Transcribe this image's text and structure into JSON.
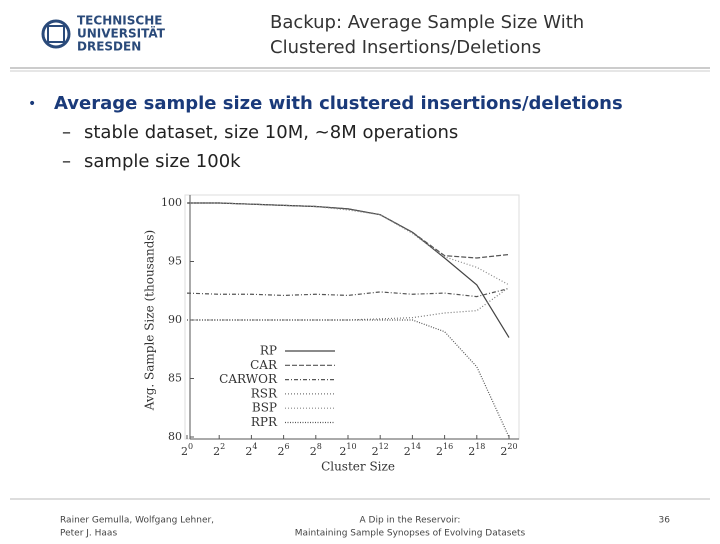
{
  "header": {
    "logo": [
      "TECHNISCHE",
      "UNIVERSITÄT",
      "DRESDEN"
    ],
    "title": [
      "Backup: Average Sample Size With",
      "Clustered Insertions/Deletions"
    ]
  },
  "bullets": {
    "main": "Average sample size with clustered insertions/deletions",
    "sub": [
      "stable dataset, size 10M, ~8M operations",
      "sample size 100k"
    ]
  },
  "chart_data": {
    "type": "line",
    "xlabel": "Cluster Size",
    "ylabel": "Avg. Sample Size (thousands)",
    "x": [
      1,
      4,
      16,
      64,
      256,
      1024,
      4096,
      16384,
      65536,
      262144,
      1048576
    ],
    "xscale": "log",
    "xlim": [
      1,
      1048576
    ],
    "xticks": [
      {
        "value": 1,
        "label": "2^0"
      },
      {
        "value": 4,
        "label": "2^2"
      },
      {
        "value": 16,
        "label": "2^4"
      },
      {
        "value": 64,
        "label": "2^6"
      },
      {
        "value": 256,
        "label": "2^8"
      },
      {
        "value": 1024,
        "label": "2^10"
      },
      {
        "value": 4096,
        "label": "2^12"
      },
      {
        "value": 16384,
        "label": "2^14"
      },
      {
        "value": 65536,
        "label": "2^16"
      },
      {
        "value": 262144,
        "label": "2^18"
      },
      {
        "value": 1048576,
        "label": "2^20"
      }
    ],
    "ylim": [
      80,
      100
    ],
    "yticks": [
      80,
      85,
      90,
      95,
      100
    ],
    "series": [
      {
        "name": "RP",
        "color": "#444444",
        "style": "solid",
        "values": [
          100,
          100,
          99.9,
          99.8,
          99.7,
          99.5,
          99,
          97.5,
          95.3,
          93,
          88.5
        ]
      },
      {
        "name": "CAR",
        "color": "#555555",
        "style": "dashed",
        "values": [
          100,
          100,
          99.9,
          99.8,
          99.7,
          99.5,
          99,
          97.5,
          95.5,
          95.3,
          95.6
        ]
      },
      {
        "name": "CARWOR",
        "color": "#555555",
        "style": "dashdot",
        "values": [
          92.3,
          92.2,
          92.2,
          92.1,
          92.2,
          92.1,
          92.4,
          92.2,
          92.3,
          92,
          92.7
        ]
      },
      {
        "name": "RSR",
        "color": "#777777",
        "style": "dotted",
        "values": [
          90,
          90,
          90,
          90,
          90,
          90,
          90.1,
          90.2,
          90.6,
          90.8,
          92.8
        ]
      },
      {
        "name": "BSP",
        "color": "#888888",
        "style": "dotted",
        "values": [
          100,
          100,
          99.9,
          99.8,
          99.7,
          99.4,
          99,
          97.4,
          95.4,
          94.5,
          93
        ]
      },
      {
        "name": "RPR",
        "color": "#555555",
        "style": "densedot",
        "values": [
          90,
          90,
          90,
          90,
          90,
          90,
          90,
          90,
          89,
          86,
          80
        ]
      }
    ]
  },
  "footer": {
    "authors": [
      "Rainer Gemulla, Wolfgang Lehner,",
      "Peter J. Haas"
    ],
    "talk": [
      "A Dip in the Reservoir:",
      "Maintaining Sample Synopses of Evolving Datasets"
    ],
    "page": "36"
  }
}
